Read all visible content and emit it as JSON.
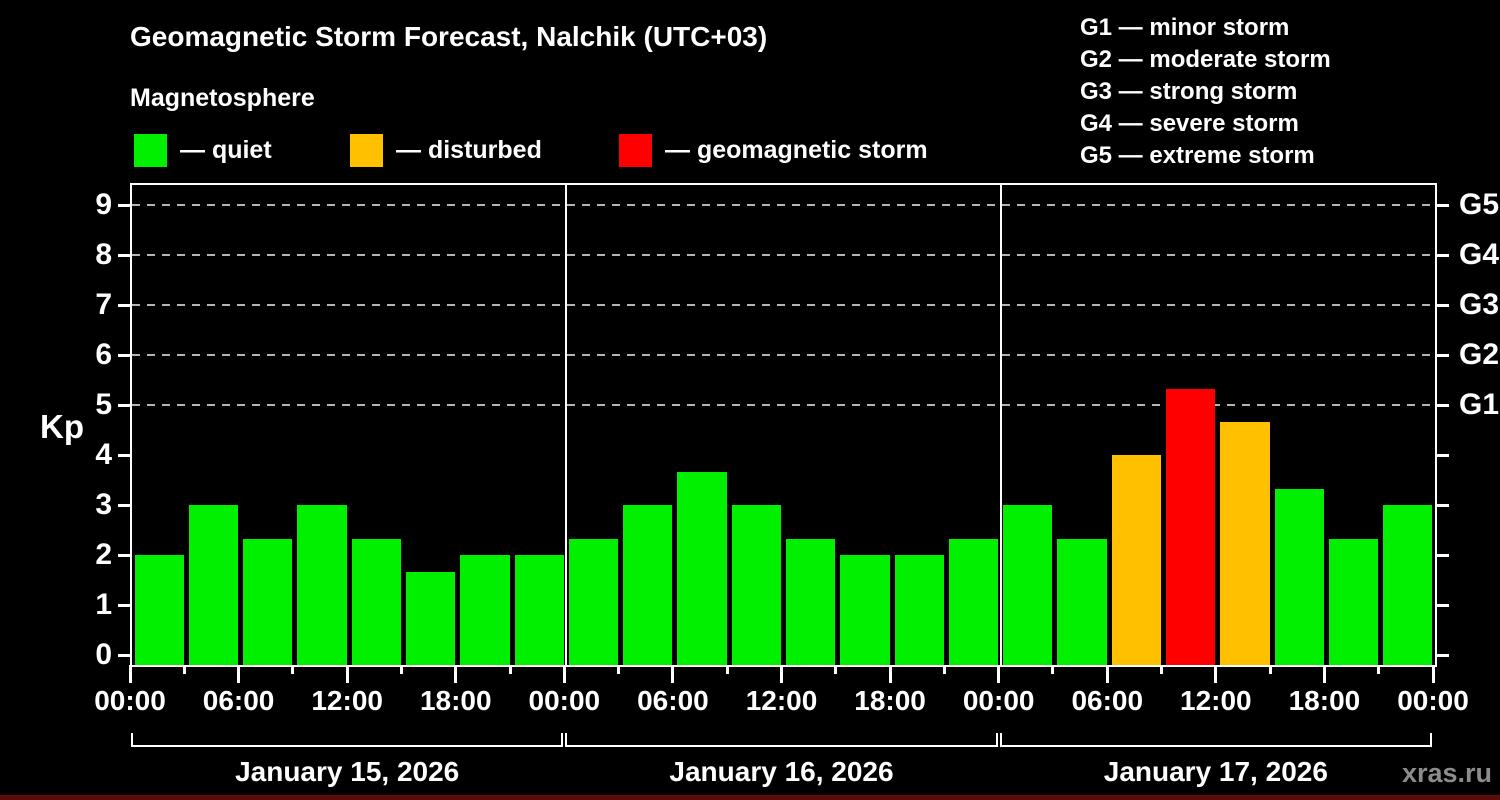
{
  "title": "Geomagnetic Storm Forecast, Nalchik (UTC+03)",
  "subtitle": "Magnetosphere",
  "condition_legend": [
    {
      "name": "quiet",
      "label": "— quiet",
      "color": "#00f000"
    },
    {
      "name": "disturbed",
      "label": "— disturbed",
      "color": "#ffc000"
    },
    {
      "name": "storm",
      "label": "— geomagnetic storm",
      "color": "#ff0000"
    }
  ],
  "storm_scale_legend": [
    {
      "label": "G1 — minor storm"
    },
    {
      "label": "G2 — moderate storm"
    },
    {
      "label": "G3 — strong storm"
    },
    {
      "label": "G4 — severe storm"
    },
    {
      "label": "G5 — extreme storm"
    }
  ],
  "watermark": "xras.ru",
  "chart_data": {
    "type": "bar",
    "title": "Geomagnetic Storm Forecast, Nalchik (UTC+03)",
    "ylabel": "Kp",
    "ylim": [
      0,
      9
    ],
    "yticks": [
      0,
      1,
      2,
      3,
      4,
      5,
      6,
      7,
      8,
      9
    ],
    "right_axis_ticks": [
      {
        "kp": 5,
        "label": "G1"
      },
      {
        "kp": 6,
        "label": "G2"
      },
      {
        "kp": 7,
        "label": "G3"
      },
      {
        "kp": 8,
        "label": "G4"
      },
      {
        "kp": 9,
        "label": "G5"
      }
    ],
    "gridlines_kp": [
      5,
      6,
      7,
      8,
      9
    ],
    "grid_style": "dashed",
    "bar_interval_hours": 3,
    "x_major_labels": [
      "00:00",
      "06:00",
      "12:00",
      "18:00",
      "00:00",
      "06:00",
      "12:00",
      "18:00",
      "00:00",
      "06:00",
      "12:00",
      "18:00",
      "00:00"
    ],
    "days": [
      {
        "date": "January 15, 2026",
        "values": [
          2,
          3,
          2.33,
          3,
          2.33,
          1.67,
          2,
          2
        ],
        "levels": [
          "quiet",
          "quiet",
          "quiet",
          "quiet",
          "quiet",
          "quiet",
          "quiet",
          "quiet"
        ]
      },
      {
        "date": "January 16, 2026",
        "values": [
          2.33,
          3,
          3.67,
          3,
          2.33,
          2,
          2,
          2.33
        ],
        "levels": [
          "quiet",
          "quiet",
          "quiet",
          "quiet",
          "quiet",
          "quiet",
          "quiet",
          "quiet"
        ]
      },
      {
        "date": "January 17, 2026",
        "values": [
          3,
          2.33,
          4,
          5.33,
          4.67,
          3.33,
          2.33,
          3
        ],
        "levels": [
          "quiet",
          "quiet",
          "disturbed",
          "storm",
          "disturbed",
          "quiet",
          "quiet",
          "quiet"
        ]
      }
    ]
  },
  "colors": {
    "background": "#000000",
    "axis": "#ffffff",
    "grid": "#b4b4b4",
    "text": "#ffffff",
    "watermark": "#8c8c8c",
    "bottom_strip": "#5c0a0a"
  }
}
